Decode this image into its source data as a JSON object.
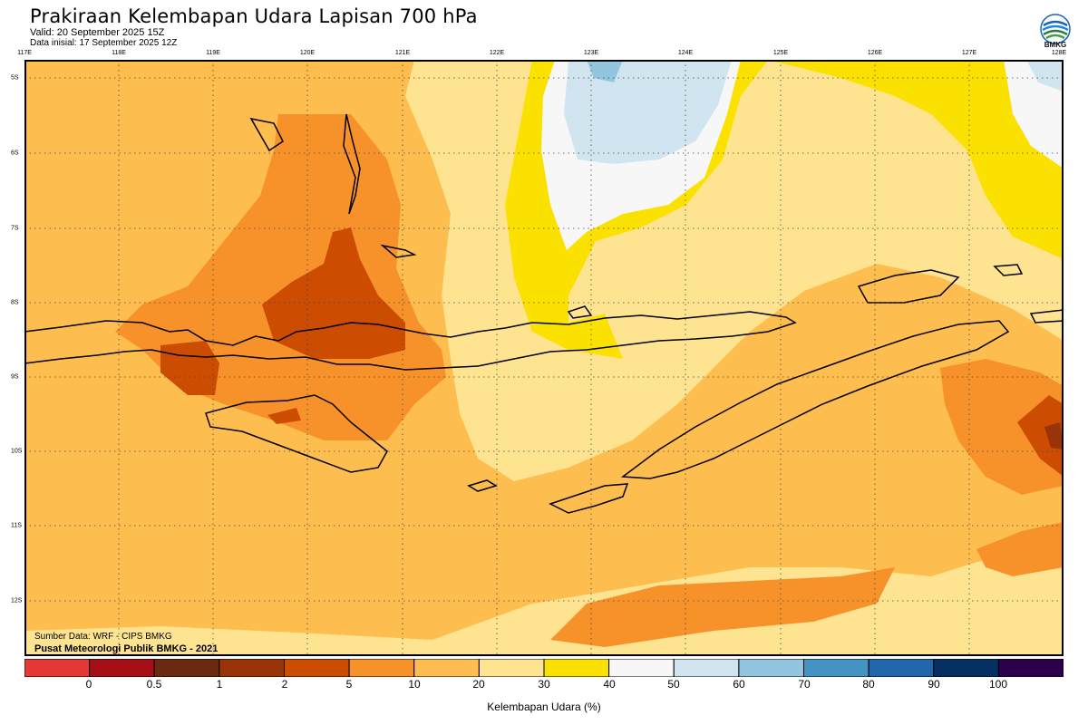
{
  "header": {
    "title": "Prakiraan Kelembapan Udara Lapisan 700 hPa",
    "valid": "Valid: 20 September 2025 15Z",
    "initial": "Data inisial: 17 September 2025 12Z"
  },
  "logo": {
    "text": "BMKG",
    "icon": "bmkg-logo-icon"
  },
  "map": {
    "lon_labels": [
      "117E",
      "118E",
      "119E",
      "120E",
      "121E",
      "122E",
      "123E",
      "124E",
      "125E",
      "126E",
      "127E",
      "128E"
    ],
    "lat_labels": [
      "5S",
      "6S",
      "7S",
      "8S",
      "9S",
      "10S",
      "11S",
      "12S"
    ],
    "lon_range": [
      117,
      128
    ],
    "lat_range": [
      -4.8,
      -12.75
    ]
  },
  "credits": {
    "source": "Sumber Data: WRF - CIPS BMKG",
    "org": "Pusat Meteorologi Publik BMKG - 2021"
  },
  "legend": {
    "ticks": [
      "0",
      "0.5",
      "1",
      "2",
      "5",
      "10",
      "20",
      "30",
      "40",
      "50",
      "60",
      "70",
      "80",
      "90",
      "100"
    ],
    "colors": [
      "#e53935",
      "#a50f15",
      "#6b2a10",
      "#983408",
      "#cc4c02",
      "#f7922b",
      "#fdbd4f",
      "#fee391",
      "#fbe100",
      "#f7f7f7",
      "#d1e5f0",
      "#92c5de",
      "#4393c3",
      "#2166ac",
      "#053061",
      "#2d004b"
    ],
    "caption": "Kelembapan Udara (%)"
  }
}
